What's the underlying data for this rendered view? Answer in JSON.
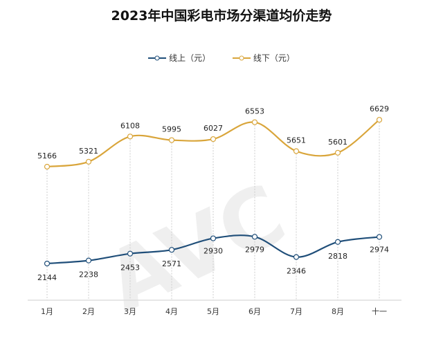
{
  "chart_data": {
    "type": "line",
    "title": "2023年中国彩电市场分渠道均价走势",
    "categories": [
      "1月",
      "2月",
      "3月",
      "4月",
      "5月",
      "6月",
      "7月",
      "8月",
      "十一"
    ],
    "series": [
      {
        "name": "线上（元）",
        "color": "#1f4e79",
        "values": [
          2144,
          2238,
          2453,
          2571,
          2930,
          2979,
          2346,
          2818,
          2974
        ]
      },
      {
        "name": "线下（元）",
        "color": "#d9a53a",
        "values": [
          5166,
          5321,
          6108,
          5995,
          6027,
          6553,
          5651,
          5601,
          6629
        ]
      }
    ],
    "xlabel": "",
    "ylabel": "",
    "ylim": [
      1000,
      7000
    ],
    "grid": "vertical dashed drop lines",
    "legend": "top-center",
    "watermark": "AVC 奥维云网"
  }
}
